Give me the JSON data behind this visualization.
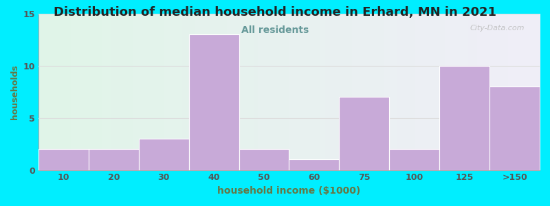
{
  "title": "Distribution of median household income in Erhard, MN in 2021",
  "subtitle": "All residents",
  "xlabel": "household income ($1000)",
  "ylabel": "households",
  "categories": [
    "10",
    "20",
    "30",
    "40",
    "50",
    "60",
    "75",
    "100",
    "125",
    ">150"
  ],
  "values": [
    2,
    2,
    3,
    13,
    2,
    1,
    7,
    2,
    10,
    8
  ],
  "bar_color": "#c8aad8",
  "bg_outer": "#00eeff",
  "bg_plot_grad_left": "#e0f5e8",
  "bg_plot_grad_right": "#f0eef8",
  "ylim": [
    0,
    15
  ],
  "yticks": [
    0,
    5,
    10,
    15
  ],
  "grid_color": "#dddddd",
  "title_color": "#222222",
  "subtitle_color": "#669999",
  "axis_label_color": "#667744",
  "tick_label_color": "#555555",
  "watermark": "City-Data.com",
  "title_fontsize": 13,
  "subtitle_fontsize": 10,
  "xlabel_fontsize": 10,
  "ylabel_fontsize": 9
}
